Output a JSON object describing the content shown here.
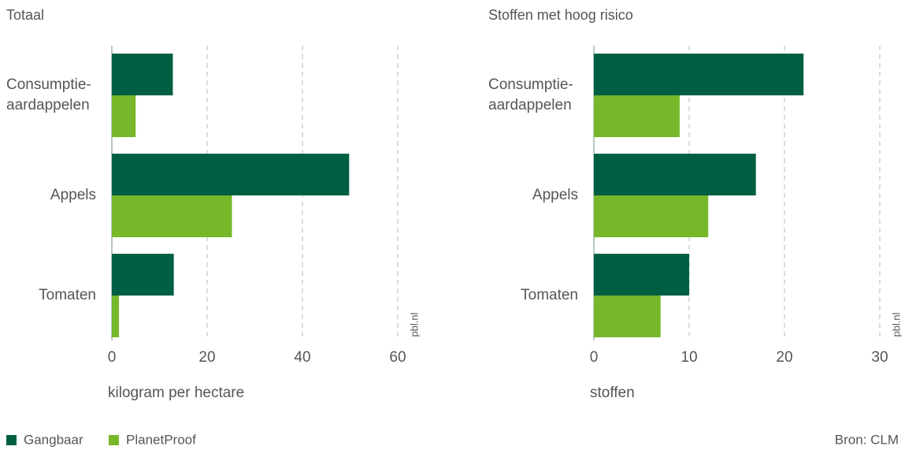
{
  "chart_data": [
    {
      "type": "barh",
      "title": "Totaal",
      "xlabel": "kilogram per hectare",
      "watermark": "pbl.nl",
      "categories": [
        "Consumptie-aardappelen",
        "Appels",
        "Tomaten"
      ],
      "series": [
        {
          "name": "Gangbaar",
          "color": "#005f43",
          "values": [
            12.8,
            49.8,
            13
          ]
        },
        {
          "name": "PlanetProof",
          "color": "#76b82a",
          "values": [
            5,
            25.2,
            1.5
          ]
        }
      ],
      "xlim": [
        0,
        60
      ],
      "xticks": [
        0,
        20,
        40,
        60
      ],
      "grid": true
    },
    {
      "type": "barh",
      "title": "Stoffen met hoog risico",
      "xlabel": "stoffen",
      "watermark": "pbl.nl",
      "categories": [
        "Consumptie-aardappelen",
        "Appels",
        "Tomaten"
      ],
      "series": [
        {
          "name": "Gangbaar",
          "color": "#005f43",
          "values": [
            22,
            17,
            10
          ]
        },
        {
          "name": "PlanetProof",
          "color": "#76b82a",
          "values": [
            9,
            12,
            7
          ]
        }
      ],
      "xlim": [
        0,
        30
      ],
      "xticks": [
        0,
        10,
        20,
        30
      ],
      "grid": true
    }
  ],
  "source": "Bron: CLM"
}
